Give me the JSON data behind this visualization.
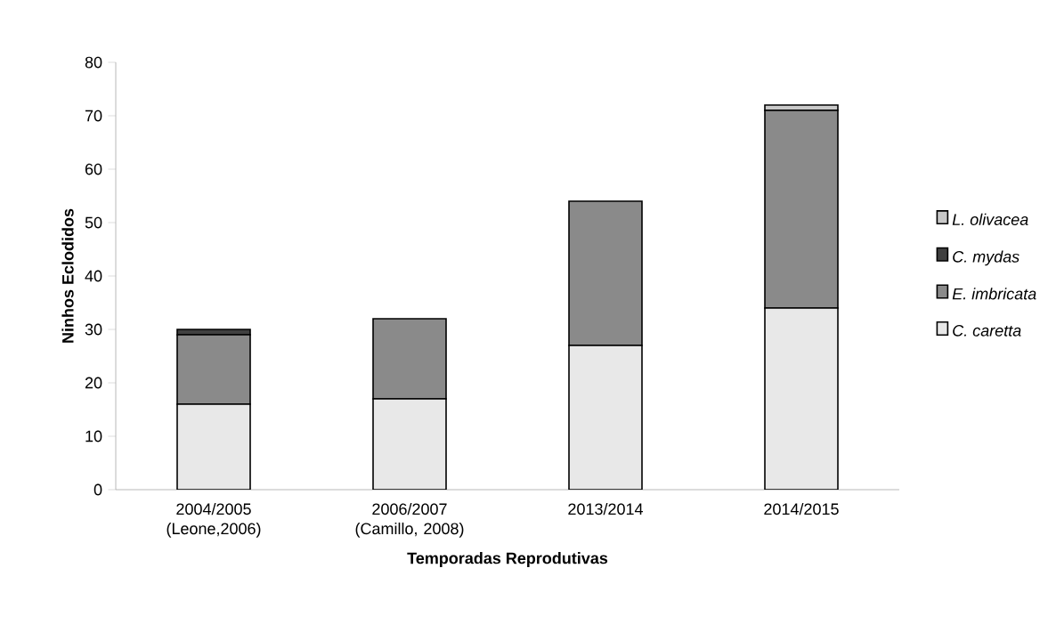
{
  "chart_data": {
    "type": "bar",
    "stacked": true,
    "xlabel": "Temporadas Reprodutivas",
    "ylabel": "Ninhos Eclodidos",
    "categories": [
      "2004/2005 (Leone,2006)",
      "2006/2007 (Camillo, 2008)",
      "2013/2014",
      "2014/2015"
    ],
    "series": [
      {
        "name": "C. caretta",
        "color": "#e8e8e8",
        "values": [
          16,
          17,
          27,
          34
        ]
      },
      {
        "name": "E. imbricata",
        "color": "#8a8a8a",
        "values": [
          13,
          15,
          27,
          37
        ]
      },
      {
        "name": "C. mydas",
        "color": "#404040",
        "values": [
          1,
          0,
          0,
          0
        ]
      },
      {
        "name": "L. olivacea",
        "color": "#c8c8c8",
        "values": [
          0,
          0,
          0,
          1
        ]
      }
    ],
    "ylim": [
      0,
      80
    ],
    "yticks": [
      0,
      10,
      20,
      30,
      40,
      50,
      60,
      70,
      80
    ],
    "grid": false,
    "legend": "right"
  }
}
